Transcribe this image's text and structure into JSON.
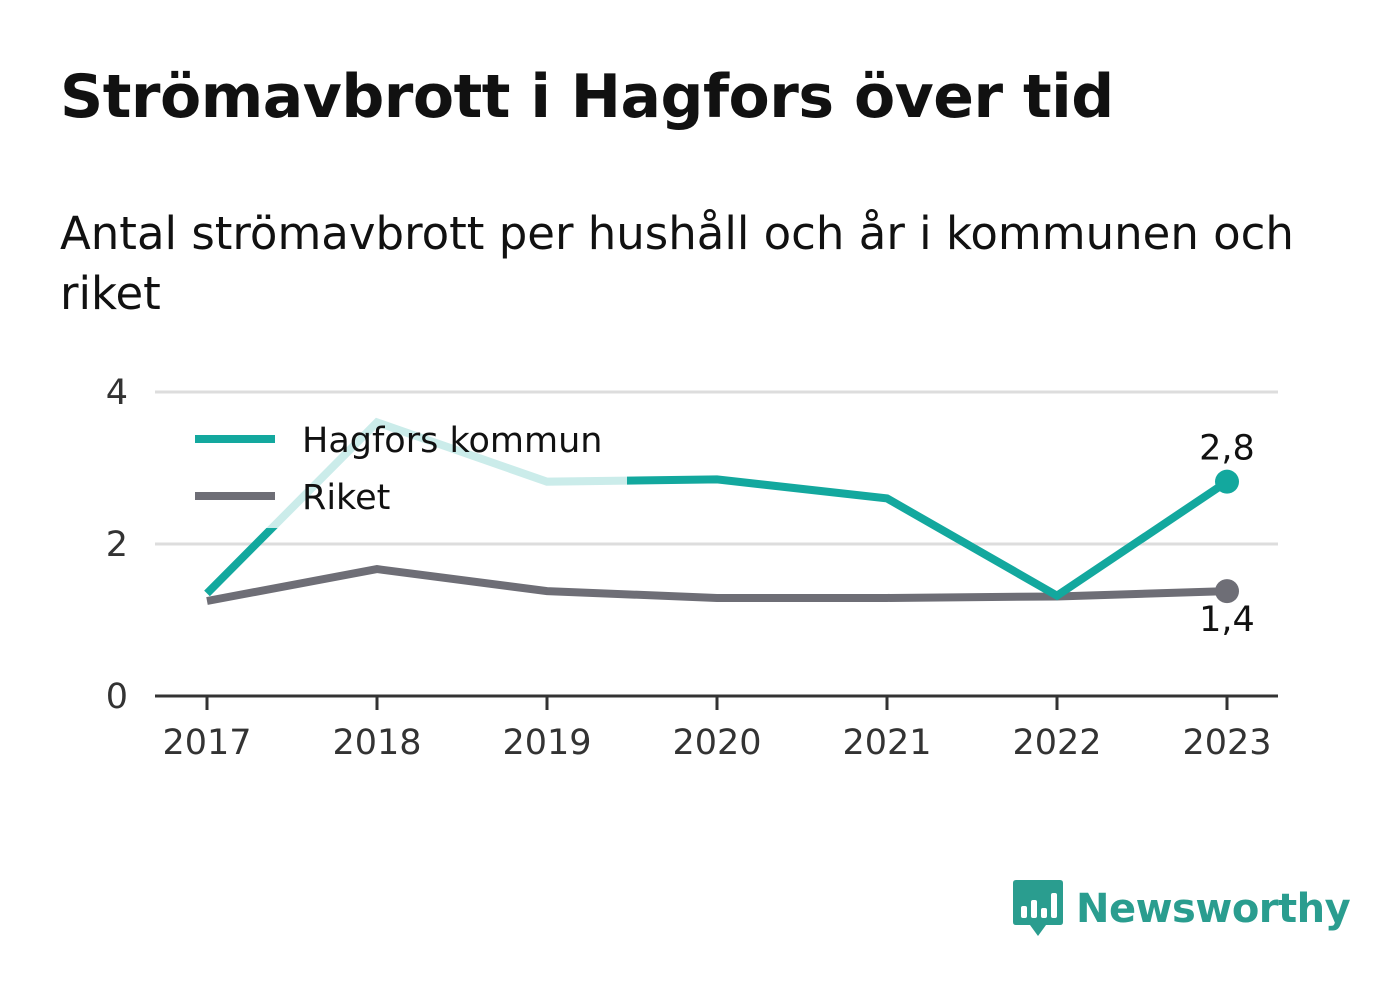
{
  "title": "Strömavbrott i Hagfors över tid",
  "subtitle": "Antal strömavbrott per hushåll och år i kommunen och riket",
  "brand": {
    "name": "Newsworthy",
    "icon": "newsworthy-logo-icon",
    "color": "#2a9d8f"
  },
  "chart_data": {
    "type": "line",
    "x": [
      "2017",
      "2018",
      "2019",
      "2020",
      "2021",
      "2022",
      "2023"
    ],
    "series": [
      {
        "name": "Hagfors kommun",
        "color": "#13a89e",
        "values": [
          1.35,
          3.6,
          2.82,
          2.85,
          2.6,
          1.32,
          2.82
        ],
        "end_label": "2,8"
      },
      {
        "name": "Riket",
        "color": "#6e6e76",
        "values": [
          1.25,
          1.67,
          1.38,
          1.29,
          1.29,
          1.31,
          1.38
        ],
        "end_label": "1,4"
      }
    ],
    "yticks": [
      "0",
      "2",
      "4"
    ],
    "ylim": [
      0,
      4
    ],
    "grid": true,
    "legend": "top-left"
  }
}
